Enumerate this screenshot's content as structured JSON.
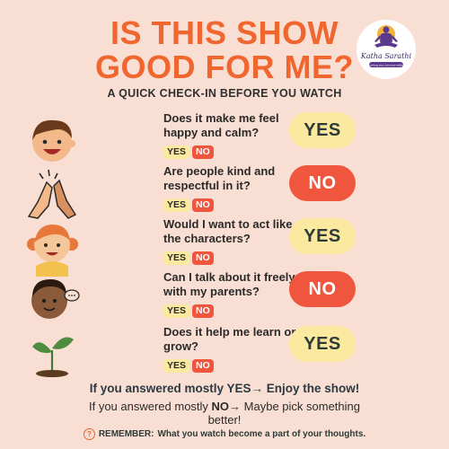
{
  "header": {
    "title_line1": "IS THIS SHOW",
    "title_line2": "GOOD FOR ME?",
    "subtitle": "A QUICK CHECK-IN BEFORE YOU WATCH"
  },
  "logo": {
    "icon": "meditating-figure-icon",
    "brand": "Katha Sarathi",
    "tagline": "Guiding your journey within"
  },
  "questions": [
    {
      "text": "Does it make me feel happy and calm?",
      "yes": "YES",
      "no": "NO",
      "answer": "YES",
      "illustration": "smiling-boy-icon"
    },
    {
      "text": "Are people kind and respectful in it?",
      "yes": "YES",
      "no": "NO",
      "answer": "NO",
      "illustration": "high-five-hands-icon"
    },
    {
      "text": "Would I want to act like the characters?",
      "yes": "YES",
      "no": "NO",
      "answer": "YES",
      "illustration": "girl-pigtails-icon"
    },
    {
      "text": "Can I talk about it freely with my parents?",
      "yes": "YES",
      "no": "NO",
      "answer": "NO",
      "illustration": "boy-speech-bubble-icon"
    },
    {
      "text": "Does it help me learn or grow?",
      "yes": "YES",
      "no": "NO",
      "answer": "YES",
      "illustration": "sprout-icon"
    }
  ],
  "footer": {
    "line1": "If you answered mostly YES→ Enjoy the show!",
    "line2_prefix": "If you answered mostly ",
    "line2_bold": "NO",
    "line2_suffix": "→ Maybe pick something better!",
    "remember_label": "REMEMBER:",
    "remember_text": "What you watch become a part of your thoughts."
  },
  "colors": {
    "background": "#f9dfd3",
    "title": "#f0662f",
    "yes_pill": "#fce9a0",
    "no_pill": "#f0553d"
  }
}
